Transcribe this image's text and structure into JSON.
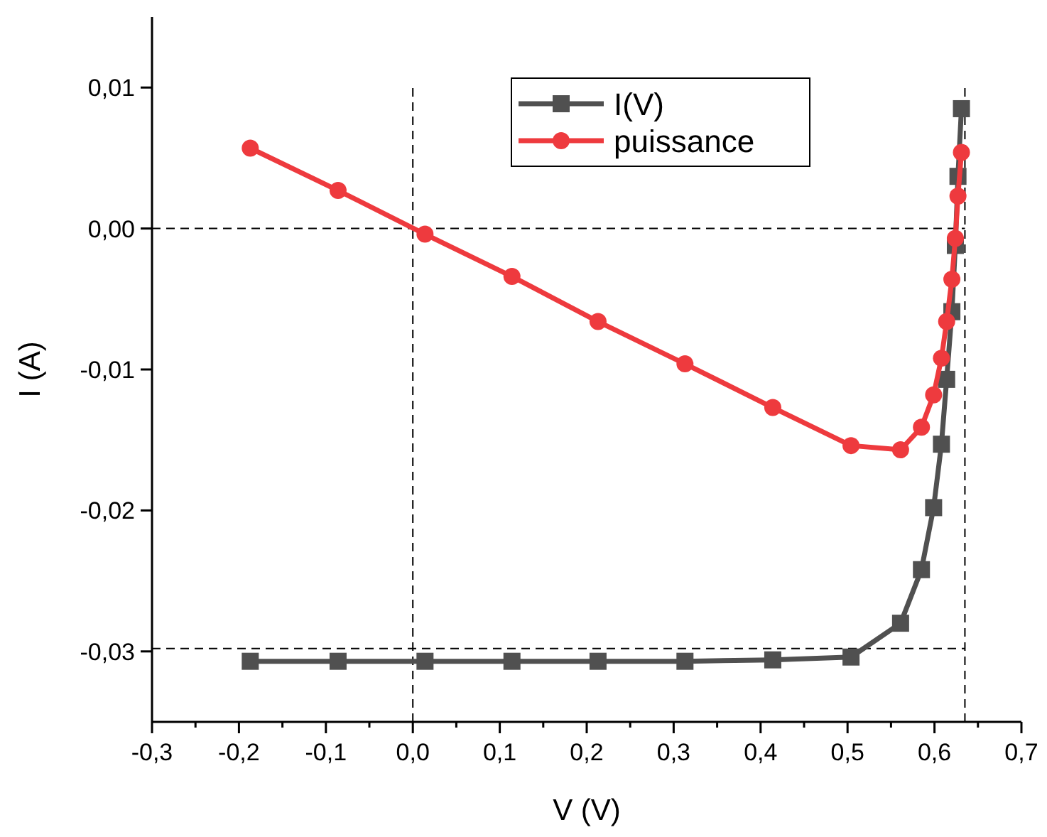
{
  "chart_data": {
    "type": "line",
    "xlabel": "V (V)",
    "ylabel": "I (A)",
    "x": [
      -0.187,
      -0.086,
      0.014,
      0.114,
      0.213,
      0.313,
      0.414,
      0.504,
      0.561,
      0.585,
      0.599,
      0.608,
      0.614,
      0.62,
      0.624,
      0.627,
      0.631
    ],
    "series": [
      {
        "name": "I(V)",
        "color": "#505050",
        "marker": "square",
        "values": [
          -0.0307,
          -0.0307,
          -0.0307,
          -0.0307,
          -0.0307,
          -0.0307,
          -0.0306,
          -0.0304,
          -0.028,
          -0.0242,
          -0.0198,
          -0.0153,
          -0.0107,
          -0.0059,
          -0.0012,
          0.0037,
          0.0085
        ]
      },
      {
        "name": "puissance",
        "color": "#ee3a3e",
        "marker": "circle",
        "values": [
          0.0057,
          0.0027,
          -0.0004,
          -0.0034,
          -0.0066,
          -0.0096,
          -0.0127,
          -0.0154,
          -0.0157,
          -0.0141,
          -0.0118,
          -0.0092,
          -0.0066,
          -0.0036,
          -0.0007,
          0.0023,
          0.0054
        ]
      }
    ],
    "xlim": [
      -0.3,
      0.7
    ],
    "xticks": [
      {
        "value": -0.3,
        "label": "-0,3"
      },
      {
        "value": -0.25,
        "label": null
      },
      {
        "value": -0.2,
        "label": "-0,2"
      },
      {
        "value": -0.15,
        "label": null
      },
      {
        "value": -0.1,
        "label": "-0,1"
      },
      {
        "value": -0.05,
        "label": null
      },
      {
        "value": 0,
        "label": "0,0"
      },
      {
        "value": 0.05,
        "label": null
      },
      {
        "value": 0.1,
        "label": "0,1"
      },
      {
        "value": 0.15,
        "label": null
      },
      {
        "value": 0.2,
        "label": "0,2"
      },
      {
        "value": 0.25,
        "label": null
      },
      {
        "value": 0.3,
        "label": "0,3"
      },
      {
        "value": 0.35,
        "label": null
      },
      {
        "value": 0.4,
        "label": "0,4"
      },
      {
        "value": 0.45,
        "label": null
      },
      {
        "value": 0.5,
        "label": "0,5"
      },
      {
        "value": 0.55,
        "label": null
      },
      {
        "value": 0.6,
        "label": "0,6"
      },
      {
        "value": 0.65,
        "label": null
      },
      {
        "value": 0.7,
        "label": "0,7"
      }
    ],
    "ylim": [
      -0.035,
      0.015
    ],
    "yticks": [
      {
        "value": -0.03,
        "label": "-0,03"
      },
      {
        "value": -0.02,
        "label": "-0,02"
      },
      {
        "value": -0.01,
        "label": "-0,01"
      },
      {
        "value": 0,
        "label": "0,00"
      },
      {
        "value": 0.01,
        "label": "0,01"
      }
    ],
    "ref_lines": [
      {
        "axis": "x",
        "value": 0,
        "color": "#000000",
        "line_style": "dashed"
      },
      {
        "axis": "x",
        "value": 0.635,
        "color": "#000000",
        "line_style": "dashed"
      },
      {
        "axis": "y",
        "value": 0,
        "color": "#000000",
        "line_style": "dashed"
      },
      {
        "axis": "y",
        "value": -0.0298,
        "color": "#000000",
        "line_style": "dashed"
      }
    ],
    "line_style": "solid",
    "grid": false,
    "legend": "top"
  }
}
